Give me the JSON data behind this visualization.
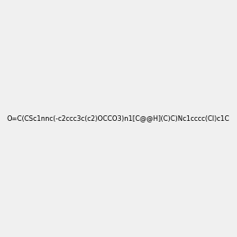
{
  "smiles": "O=C(CSc1nnc(-c2ccc3c(c2)OCCO3)n1[C@@H](C)C)Nc1cccc(Cl)c1C",
  "image_size": 300,
  "background_color": "#f0f0f0",
  "title": ""
}
